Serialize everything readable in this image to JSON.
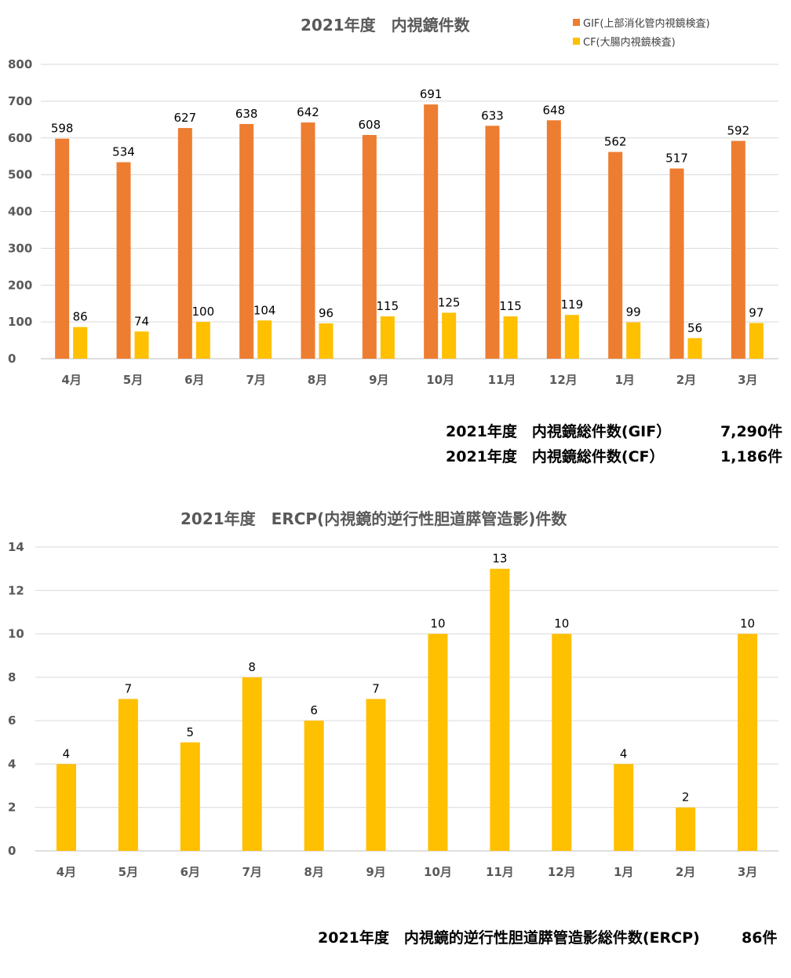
{
  "colors": {
    "gif": "#ED7D31",
    "cf": "#FFC000",
    "ercp": "#FFC000",
    "axis_text": "#595959",
    "grid": "#D9D9D9"
  },
  "chart1": {
    "title": "2021年度　内視鏡件数",
    "legend": [
      "GIF(上部消化管内視鏡検査)",
      "CF(大腸内視鏡検査)"
    ]
  },
  "chart2": {
    "title": "2021年度　ERCP(内視鏡的逆行性胆道膵管造影)件数"
  },
  "summary": {
    "gif_label": "2021年度　内視鏡総件数(GIF）",
    "gif_value": "7,290件",
    "cf_label": "2021年度　内視鏡総件数(CF）",
    "cf_value": "1,186件",
    "ercp_label": "2021年度　内視鏡的逆行性胆道膵管造影総件数(ERCP)",
    "ercp_value": "86件"
  },
  "chart_data": [
    {
      "type": "bar",
      "title": "2021年度　内視鏡件数",
      "categories": [
        "4月",
        "5月",
        "6月",
        "7月",
        "8月",
        "9月",
        "10月",
        "11月",
        "12月",
        "1月",
        "2月",
        "3月"
      ],
      "series": [
        {
          "name": "GIF(上部消化管内視鏡検査)",
          "values": [
            598,
            534,
            627,
            638,
            642,
            608,
            691,
            633,
            648,
            562,
            517,
            592
          ]
        },
        {
          "name": "CF(大腸内視鏡検査)",
          "values": [
            86,
            74,
            100,
            104,
            96,
            115,
            125,
            115,
            119,
            99,
            56,
            97
          ]
        }
      ],
      "ylim": [
        0,
        800
      ],
      "yticks": [
        0,
        100,
        200,
        300,
        400,
        500,
        600,
        700,
        800
      ],
      "grid": true,
      "legend_position": "top-right"
    },
    {
      "type": "bar",
      "title": "2021年度　ERCP(内視鏡的逆行性胆道膵管造影)件数",
      "categories": [
        "4月",
        "5月",
        "6月",
        "7月",
        "8月",
        "9月",
        "10月",
        "11月",
        "12月",
        "1月",
        "2月",
        "3月"
      ],
      "series": [
        {
          "values": [
            4,
            7,
            5,
            8,
            6,
            7,
            10,
            13,
            10,
            4,
            2,
            10
          ]
        }
      ],
      "ylim": [
        0,
        14
      ],
      "yticks": [
        0,
        2,
        4,
        6,
        8,
        10,
        12,
        14
      ],
      "grid": true
    }
  ]
}
